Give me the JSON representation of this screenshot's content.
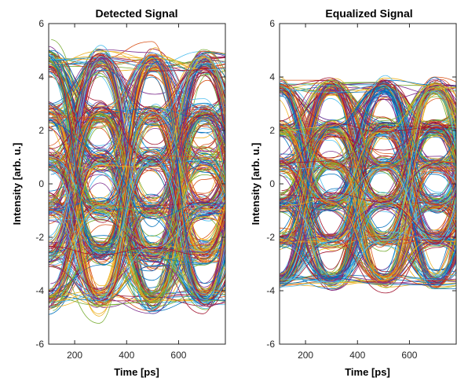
{
  "chart_data": [
    {
      "type": "line",
      "title": "Detected Signal",
      "xlabel": "Time [ps]",
      "ylabel": "Intensity [arb. u.]",
      "xlim": [
        100,
        780
      ],
      "ylim": [
        -6,
        6
      ],
      "xticks": [
        200,
        400,
        600
      ],
      "yticks": [
        -6,
        -4,
        -2,
        0,
        2,
        4,
        6
      ],
      "xtick_labels": [
        "200",
        "400",
        "600"
      ],
      "ytick_labels": [
        "-6",
        "-4",
        "-2",
        "0",
        "2",
        "4",
        "6"
      ],
      "grid": false,
      "plot_kind": "eye diagram",
      "symbol_period_ps": 200,
      "symbol_centers_ps": [
        100,
        300,
        500,
        700
      ],
      "levels": [
        -4.3,
        -2.6,
        -0.9,
        0.9,
        2.6,
        4.6
      ],
      "level_spread": 0.7
    },
    {
      "type": "line",
      "title": "Equalized Signal",
      "xlabel": "Time [ps]",
      "ylabel": "Intensity [arb. u.]",
      "xlim": [
        100,
        780
      ],
      "ylim": [
        -6,
        6
      ],
      "xticks": [
        200,
        400,
        600
      ],
      "yticks": [
        -6,
        -4,
        -2,
        0,
        2,
        4,
        6
      ],
      "xtick_labels": [
        "200",
        "400",
        "600"
      ],
      "ytick_labels": [
        "-6",
        "-4",
        "-2",
        "0",
        "2",
        "4",
        "6"
      ],
      "grid": false,
      "plot_kind": "eye diagram",
      "symbol_period_ps": 200,
      "symbol_centers_ps": [
        100,
        300,
        500,
        700
      ],
      "levels": [
        -3.6,
        -2.1,
        -0.7,
        0.7,
        2.1,
        3.6
      ],
      "level_spread": 0.45
    }
  ],
  "series_colors": [
    "#0072BD",
    "#D95319",
    "#EDB120",
    "#7E2F8E",
    "#77AC30",
    "#4DBEEE",
    "#A2142F"
  ]
}
